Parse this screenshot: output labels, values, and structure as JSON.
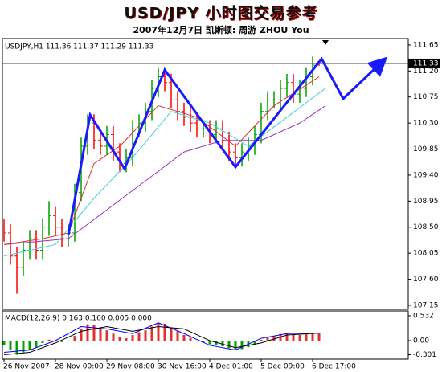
{
  "chart_data": [
    {
      "type": "ohlc",
      "title": "USD/JPY  小时图交易参考",
      "subtitle": "2007年12月7日    凯斯顿: 周游 ZHOU You",
      "header": "USDJPY,H1  111.36 111.37 111.29 111.33",
      "x": [
        0,
        1,
        2,
        3,
        4,
        5,
        6,
        7,
        8,
        9,
        10,
        11,
        12,
        13,
        14,
        15,
        16,
        17,
        18,
        19,
        20,
        21,
        22,
        23,
        24,
        25,
        26,
        27,
        28,
        29,
        30,
        31,
        32,
        33,
        34,
        35,
        36,
        37,
        38,
        39,
        40,
        41,
        42,
        43,
        44,
        45,
        46,
        47,
        48,
        49
      ],
      "open": [
        108.5,
        108.4,
        108.0,
        107.8,
        108.1,
        108.3,
        108.1,
        108.5,
        108.7,
        108.5,
        108.3,
        108.4,
        109.1,
        109.9,
        110.3,
        110.0,
        109.9,
        110.1,
        109.8,
        109.6,
        109.7,
        110.2,
        110.3,
        110.5,
        110.9,
        111.1,
        111.0,
        110.7,
        110.5,
        110.4,
        110.3,
        110.2,
        110.2,
        110.1,
        110.2,
        110.0,
        109.8,
        109.7,
        109.8,
        109.9,
        110.1,
        110.5,
        110.7,
        110.7,
        110.9,
        111.0,
        110.8,
        110.9,
        111.1,
        111.36
      ],
      "high": [
        108.65,
        108.55,
        108.15,
        108.25,
        108.45,
        108.45,
        108.65,
        108.95,
        108.85,
        108.65,
        108.55,
        109.25,
        110.05,
        110.45,
        110.45,
        110.15,
        110.25,
        110.25,
        109.95,
        109.85,
        110.35,
        110.45,
        110.65,
        111.05,
        111.25,
        111.25,
        111.15,
        110.85,
        110.65,
        110.55,
        110.45,
        110.35,
        110.35,
        110.35,
        110.35,
        110.15,
        109.95,
        109.95,
        110.05,
        110.25,
        110.65,
        110.85,
        110.85,
        111.05,
        111.15,
        111.15,
        111.05,
        111.25,
        111.45,
        111.37
      ],
      "low": [
        108.25,
        107.85,
        107.35,
        107.65,
        107.95,
        107.95,
        107.95,
        108.35,
        108.35,
        108.15,
        108.15,
        108.25,
        108.95,
        109.75,
        109.85,
        109.75,
        109.75,
        109.65,
        109.45,
        109.45,
        109.55,
        110.05,
        110.15,
        110.35,
        110.75,
        110.85,
        110.55,
        110.35,
        110.25,
        110.15,
        110.05,
        110.05,
        109.95,
        109.95,
        109.85,
        109.65,
        109.55,
        109.55,
        109.65,
        109.75,
        109.95,
        110.35,
        110.55,
        110.55,
        110.75,
        110.65,
        110.65,
        110.75,
        110.95,
        111.29
      ],
      "close": [
        108.4,
        108.0,
        107.8,
        108.1,
        108.3,
        108.1,
        108.5,
        108.7,
        108.5,
        108.3,
        108.4,
        109.1,
        109.9,
        110.3,
        110.0,
        109.9,
        110.1,
        109.8,
        109.6,
        109.7,
        110.2,
        110.3,
        110.5,
        110.9,
        111.1,
        111.0,
        110.7,
        110.5,
        110.4,
        110.3,
        110.2,
        110.2,
        110.1,
        110.2,
        110.0,
        109.8,
        109.7,
        109.8,
        109.9,
        110.1,
        110.5,
        110.7,
        110.7,
        110.9,
        111.0,
        110.8,
        110.9,
        111.1,
        111.3,
        111.33
      ],
      "up_color": "#00a000",
      "down_color": "#ff0000",
      "lines": [
        {
          "color": "#9b30c8",
          "x": [
            0,
            10,
            16,
            22,
            28,
            34,
            40,
            46,
            50
          ],
          "values": [
            108.2,
            108.3,
            108.8,
            109.3,
            109.8,
            110.0,
            110.0,
            110.3,
            110.6
          ]
        },
        {
          "color": "#40d0e0",
          "x": [
            0,
            8,
            14,
            20,
            26,
            32,
            38,
            44,
            50
          ],
          "values": [
            108.0,
            108.2,
            109.0,
            109.7,
            110.5,
            110.3,
            109.9,
            110.4,
            110.9
          ]
        },
        {
          "color": "#e03030",
          "x": [
            0,
            6,
            10,
            14,
            18,
            24,
            30,
            36,
            42,
            49
          ],
          "values": [
            108.2,
            108.3,
            108.4,
            109.6,
            109.9,
            110.6,
            110.4,
            109.9,
            110.6,
            111.1
          ]
        }
      ],
      "zigzag": {
        "color": "#1a1aff",
        "x": [
          10,
          13.4,
          18.75,
          25,
          36,
          49.4,
          52.75,
          59.1
        ],
        "values": [
          108.36,
          110.44,
          109.51,
          111.22,
          109.54,
          111.41,
          110.72,
          111.39
        ]
      },
      "current_price": 111.33,
      "xlim": [
        -0.25,
        62.875
      ],
      "ylim": [
        107.08,
        111.76
      ],
      "yticks": [
        111.65,
        {
          "value": 111.2,
          "label": "111.20"
        },
        110.75,
        {
          "value": 110.3,
          "label": "110.30"
        },
        109.85,
        {
          "value": 109.4,
          "label": "109.40"
        },
        108.95,
        {
          "value": 108.5,
          "label": "108.50"
        },
        108.05,
        {
          "value": 107.6,
          "label": "107.60"
        },
        107.15
      ],
      "xticks": [
        {
          "value": 0,
          "label": "26 Nov 2007"
        },
        {
          "value": 8,
          "label": "28 Nov 00:00"
        },
        {
          "value": 16,
          "label": "29 Nov 08:00"
        },
        {
          "value": 24,
          "label": "30 Nov 16:00"
        },
        {
          "value": 32,
          "label": "4 Dec 01:00"
        },
        {
          "value": 40,
          "label": "5 Dec 09:00"
        },
        {
          "value": 48,
          "label": "6 Dec 17:00"
        }
      ]
    },
    {
      "type": "macd",
      "header": "MACD(12,26,9) 0.163 0.160 0.005 0.000",
      "histogram": [
        -0.1,
        -0.2,
        -0.3,
        -0.25,
        -0.2,
        -0.15,
        -0.05,
        0.02,
        0.01,
        -0.03,
        -0.02,
        0.1,
        0.25,
        0.35,
        0.33,
        0.25,
        0.22,
        0.15,
        0.08,
        0.05,
        0.12,
        0.18,
        0.22,
        0.3,
        0.38,
        0.36,
        0.28,
        0.2,
        0.12,
        0.06,
        0.0,
        -0.04,
        -0.08,
        -0.1,
        -0.12,
        -0.16,
        -0.2,
        -0.18,
        -0.14,
        -0.08,
        0.02,
        0.08,
        0.1,
        0.14,
        0.17,
        0.12,
        0.12,
        0.14,
        0.16,
        0.163
      ],
      "up_color": "#e03030",
      "down_color": "#00a000",
      "lines": [
        {
          "color": "#0000ff",
          "x": [
            0,
            4,
            8,
            12,
            16,
            20,
            24,
            28,
            32,
            36,
            40,
            44,
            49
          ],
          "values": [
            -0.25,
            -0.2,
            0.0,
            0.3,
            0.25,
            0.15,
            0.38,
            0.15,
            -0.1,
            -0.2,
            0.05,
            0.15,
            0.163
          ]
        },
        {
          "color": "#000000",
          "x": [
            0,
            4,
            8,
            12,
            16,
            20,
            24,
            28,
            32,
            36,
            40,
            44,
            49
          ],
          "values": [
            -0.3,
            -0.25,
            -0.05,
            0.2,
            0.3,
            0.2,
            0.3,
            0.25,
            0.0,
            -0.15,
            -0.05,
            0.12,
            0.16
          ]
        }
      ],
      "ylim": [
        -0.395,
        0.635
      ],
      "yticks": [
        0.532,
        {
          "value": 0,
          "label": "0.00"
        },
        -0.301
      ]
    }
  ]
}
